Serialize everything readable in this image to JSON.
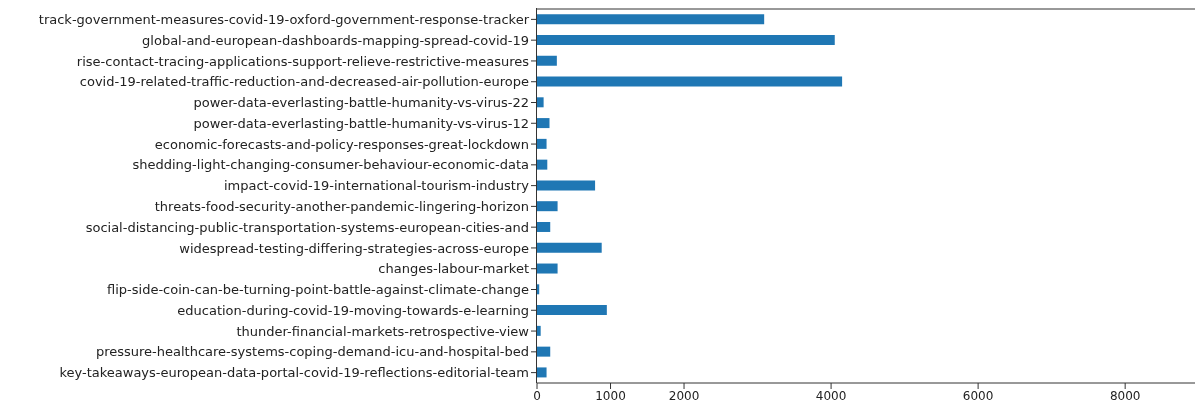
{
  "chart_data": {
    "type": "bar",
    "orientation": "horizontal",
    "categories": [
      "track-government-measures-covid-19-oxford-government-response-tracker",
      "global-and-european-dashboards-mapping-spread-covid-19",
      "rise-contact-tracing-applications-support-relieve-restrictive-measures",
      "covid-19-related-traffic-reduction-and-decreased-air-pollution-europe",
      "power-data-everlasting-battle-humanity-vs-virus-22",
      "power-data-everlasting-battle-humanity-vs-virus-12",
      "economic-forecasts-and-policy-responses-great-lockdown",
      "shedding-light-changing-consumer-behaviour-economic-data",
      "impact-covid-19-international-tourism-industry",
      "threats-food-security-another-pandemic-lingering-horizon",
      "social-distancing-public-transportation-systems-european-cities-and",
      "widespread-testing-differing-strategies-across-europe",
      "changes-labour-market",
      "flip-side-coin-can-be-turning-point-battle-against-climate-change",
      "education-during-covid-19-moving-towards-e-learning",
      "thunder-financial-markets-retrospective-view",
      "pressure-healthcare-systems-coping-demand-icu-and-hospital-bed",
      "key-takeaways-european-data-portal-covid-19-reflections-editorial-team"
    ],
    "values": [
      3090,
      4050,
      270,
      4150,
      90,
      170,
      130,
      140,
      790,
      280,
      180,
      880,
      280,
      30,
      950,
      50,
      180,
      130
    ],
    "color": "#1f77b4",
    "xlim": [
      0,
      8950
    ],
    "xticks": [
      0,
      1000,
      2000,
      4000,
      6000,
      8000
    ],
    "grid": false,
    "legend": false
  }
}
